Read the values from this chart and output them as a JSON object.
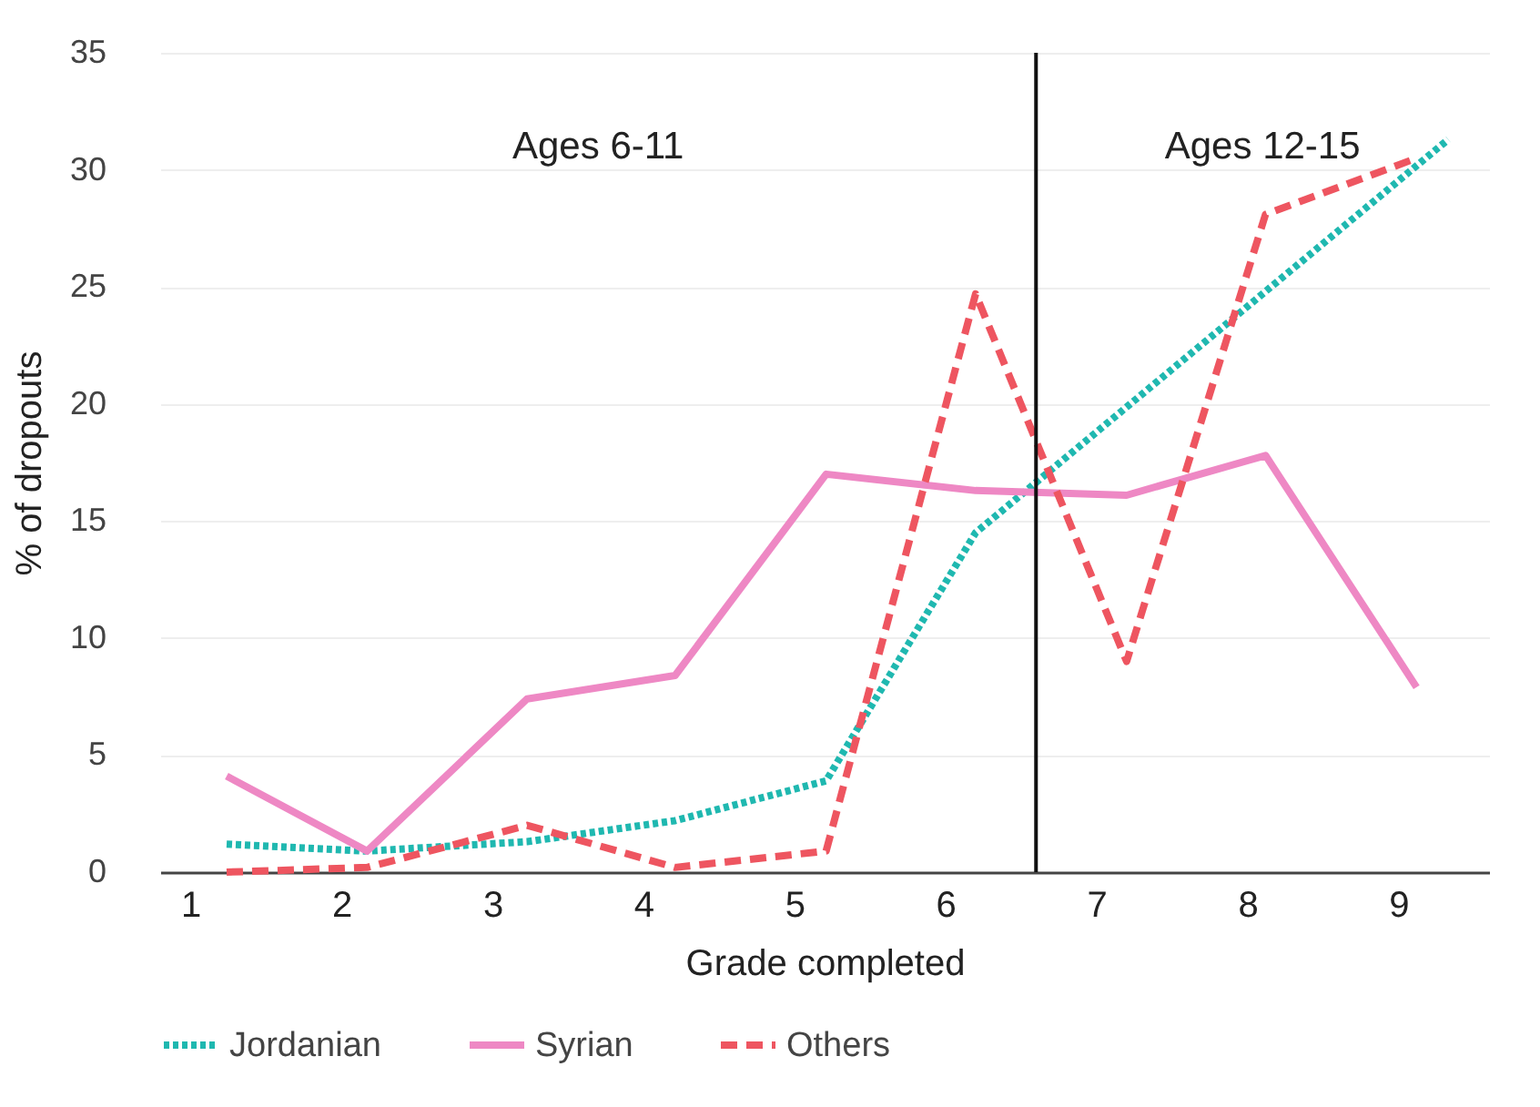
{
  "chart_data": {
    "type": "line",
    "xlabel": "Grade completed",
    "ylabel": "% of dropouts",
    "xlim": [
      0.8,
      9.6
    ],
    "xticks": [
      1,
      2,
      3,
      4,
      5,
      6,
      7,
      8,
      9
    ],
    "ylim": [
      0,
      35
    ],
    "yticks": [
      0,
      5,
      10,
      15,
      20,
      25,
      30,
      35
    ],
    "grid": "y",
    "legend": "bottom",
    "series": [
      {
        "name": "Jordanian",
        "color": "#1fb8b0",
        "line_style": "dotted",
        "x": [
          1.24,
          2.17,
          3.23,
          4.21,
          5.21,
          6.2,
          9.33
        ],
        "values": [
          1.2,
          0.9,
          1.3,
          2.2,
          3.9,
          14.5,
          31.3
        ]
      },
      {
        "name": "Syrian",
        "color": "#ee88c4",
        "line_style": "solid",
        "x": [
          1.24,
          2.17,
          3.23,
          4.21,
          5.21,
          6.2,
          7.2,
          8.12,
          9.12
        ],
        "values": [
          4.1,
          0.9,
          7.4,
          8.4,
          17.0,
          16.3,
          16.1,
          17.8,
          7.9
        ]
      },
      {
        "name": "Others",
        "color": "#ee5560",
        "line_style": "dashed",
        "x": [
          1.24,
          2.17,
          3.23,
          4.21,
          5.21,
          6.2,
          7.2,
          8.12,
          9.12
        ],
        "values": [
          0,
          0.2,
          2.0,
          0.2,
          0.9,
          24.7,
          9.0,
          28.1,
          30.5
        ]
      }
    ],
    "ref_lines": [
      {
        "axis": "x",
        "value": 6.6,
        "color": "#111111"
      }
    ],
    "annotations": [
      "Ages 6-11",
      "Ages 12-15"
    ]
  }
}
